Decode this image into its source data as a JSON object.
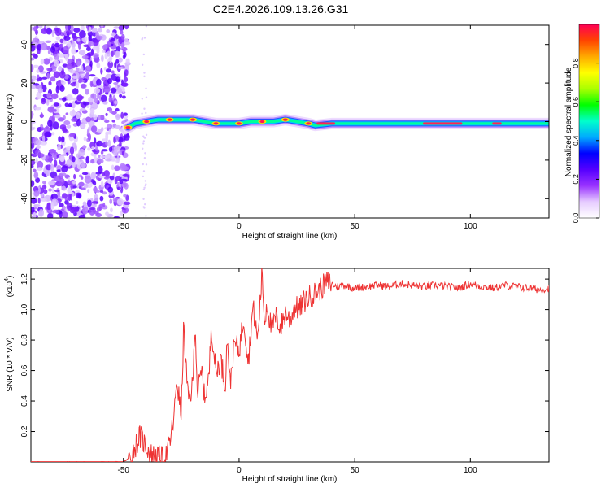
{
  "title": "C2E4.2026.109.13.26.G31",
  "chart_data": [
    {
      "type": "heatmap",
      "name": "spectrogram",
      "xlabel": "Height of straight line (km)",
      "ylabel": "Frequency (Hz)",
      "xlim": [
        -90,
        134
      ],
      "ylim": [
        -50,
        50
      ],
      "xticks": [
        -50,
        0,
        50,
        100
      ],
      "yticks": [
        -40,
        -20,
        0,
        20,
        40
      ],
      "grid": false,
      "colorscale": {
        "label": "Normalized spectral amplitude",
        "range": [
          0,
          1
        ],
        "ticks": [
          0.0,
          0.2,
          0.4,
          0.6,
          0.8
        ],
        "colors": [
          "#ffffff",
          "#e6ccff",
          "#9933ff",
          "#5500ff",
          "#0000ff",
          "#00aaff",
          "#00ffcc",
          "#00ff00",
          "#aaff00",
          "#ffff00",
          "#ffaa00",
          "#ff4400",
          "#ff0055"
        ]
      },
      "noise_region_x": [
        -90,
        -48
      ],
      "trace": [
        {
          "x": -48,
          "y": -3
        },
        {
          "x": -45,
          "y": -1
        },
        {
          "x": -40,
          "y": 0
        },
        {
          "x": -35,
          "y": 1
        },
        {
          "x": -30,
          "y": 1
        },
        {
          "x": -25,
          "y": 1
        },
        {
          "x": -20,
          "y": 1
        },
        {
          "x": -15,
          "y": 0
        },
        {
          "x": -10,
          "y": -1
        },
        {
          "x": -5,
          "y": -1
        },
        {
          "x": 0,
          "y": -1
        },
        {
          "x": 5,
          "y": 0
        },
        {
          "x": 10,
          "y": 0
        },
        {
          "x": 15,
          "y": 0
        },
        {
          "x": 20,
          "y": 1
        },
        {
          "x": 25,
          "y": 0
        },
        {
          "x": 30,
          "y": -1
        },
        {
          "x": 33,
          "y": -2
        },
        {
          "x": 40,
          "y": -1
        },
        {
          "x": 50,
          "y": -1
        },
        {
          "x": 60,
          "y": -1
        },
        {
          "x": 70,
          "y": -1
        },
        {
          "x": 80,
          "y": -1
        },
        {
          "x": 90,
          "y": -1
        },
        {
          "x": 100,
          "y": -1
        },
        {
          "x": 110,
          "y": -1
        },
        {
          "x": 120,
          "y": -1
        },
        {
          "x": 134,
          "y": -1
        }
      ]
    },
    {
      "type": "line",
      "name": "snr",
      "xlabel": "Height of straight line (km)",
      "ylabel": "SNR (10 * V/V)",
      "multiplier_label": "(x10",
      "multiplier_exp": "4",
      "xlim": [
        -90,
        134
      ],
      "ylim": [
        0,
        1.27
      ],
      "xticks": [
        -50,
        0,
        50,
        100
      ],
      "yticks": [
        0.2,
        0.4,
        0.6,
        0.8,
        1.0,
        1.2
      ],
      "ytick_labels": [
        "0.2",
        "0.4",
        "0.6",
        "0.8",
        "1.0",
        "1.2"
      ],
      "grid": false,
      "color": "#ee3333",
      "x": [
        -90,
        -50,
        -47,
        -45,
        -43,
        -40,
        -38,
        -35,
        -32,
        -30,
        -28,
        -27,
        -25,
        -24,
        -22,
        -20,
        -19,
        -18,
        -16,
        -15,
        -13,
        -12,
        -10,
        -8,
        -6,
        -5,
        -4,
        -2,
        0,
        2,
        4,
        6,
        8,
        10,
        11,
        12,
        14,
        16,
        18,
        20,
        22,
        24,
        26,
        28,
        30,
        32,
        34,
        36,
        38,
        40,
        42,
        45,
        50,
        55,
        60,
        65,
        70,
        75,
        80,
        85,
        90,
        95,
        100,
        105,
        110,
        115,
        120,
        125,
        130,
        134
      ],
      "y": [
        0.0,
        0.0,
        0.03,
        0.1,
        0.17,
        0.1,
        0.05,
        0.03,
        0.02,
        0.12,
        0.3,
        0.55,
        0.3,
        0.88,
        0.4,
        0.5,
        0.94,
        0.45,
        0.6,
        0.42,
        0.55,
        0.9,
        0.58,
        0.68,
        0.5,
        0.85,
        0.5,
        0.78,
        0.73,
        0.95,
        0.66,
        1.02,
        0.8,
        1.25,
        0.9,
        1.05,
        0.87,
        0.95,
        0.88,
        0.98,
        0.93,
        1.02,
        1.0,
        1.05,
        1.08,
        1.1,
        1.12,
        1.15,
        1.18,
        1.17,
        1.15,
        1.16,
        1.14,
        1.15,
        1.16,
        1.15,
        1.17,
        1.16,
        1.15,
        1.16,
        1.15,
        1.14,
        1.17,
        1.15,
        1.14,
        1.16,
        1.15,
        1.14,
        1.13,
        1.14
      ]
    }
  ]
}
